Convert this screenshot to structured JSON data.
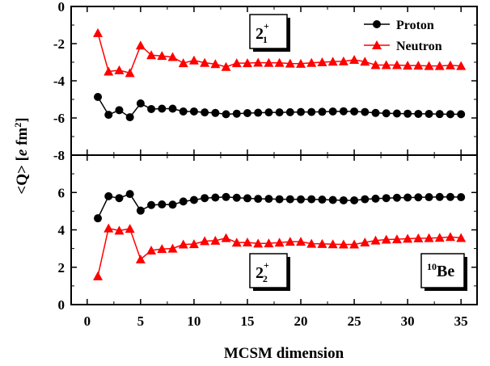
{
  "figure": {
    "xlabel": "MCSM dimension",
    "ylabel_parts": {
      "pre": "<Q> [",
      "italic": "e",
      "mid": " fm",
      "sup": "2",
      "post": "]"
    },
    "colors": {
      "proton": "#000000",
      "neutron": "#ff0000",
      "axis": "#000000"
    },
    "x_ticks": [
      "0",
      "5",
      "10",
      "15",
      "20",
      "25",
      "30",
      "35"
    ],
    "xlim": [
      -1.5,
      36.5
    ]
  },
  "chart_data": [
    {
      "type": "line",
      "panel": "top",
      "xlabel": "MCSM dimension",
      "ylabel": "<Q> [e fm2]",
      "ylim": [
        -8,
        0
      ],
      "y_ticks": [
        "0",
        "-2",
        "-4",
        "-6",
        "-8"
      ],
      "state_label": {
        "main": "2",
        "sup": "+",
        "sub": "1"
      },
      "legend_position": "top-right",
      "legend": [
        "Proton",
        "Neutron"
      ],
      "x": [
        1,
        2,
        3,
        4,
        5,
        6,
        7,
        8,
        9,
        10,
        11,
        12,
        13,
        14,
        15,
        16,
        17,
        18,
        19,
        20,
        21,
        22,
        23,
        24,
        25,
        26,
        27,
        28,
        29,
        30,
        31,
        32,
        33,
        34,
        35
      ],
      "series": [
        {
          "name": "Proton",
          "marker": "circle",
          "color": "#000000",
          "values": [
            -4.87,
            -5.83,
            -5.58,
            -5.96,
            -5.22,
            -5.52,
            -5.5,
            -5.5,
            -5.65,
            -5.65,
            -5.7,
            -5.73,
            -5.8,
            -5.77,
            -5.74,
            -5.72,
            -5.7,
            -5.7,
            -5.69,
            -5.68,
            -5.68,
            -5.67,
            -5.65,
            -5.64,
            -5.65,
            -5.68,
            -5.73,
            -5.75,
            -5.76,
            -5.77,
            -5.78,
            -5.78,
            -5.79,
            -5.8,
            -5.8
          ]
        },
        {
          "name": "Neutron",
          "marker": "triangle",
          "color": "#ff0000",
          "values": [
            -1.43,
            -3.5,
            -3.43,
            -3.58,
            -2.1,
            -2.62,
            -2.66,
            -2.72,
            -3.05,
            -2.9,
            -3.03,
            -3.1,
            -3.25,
            -3.05,
            -3.05,
            -3.02,
            -3.03,
            -3.03,
            -3.07,
            -3.08,
            -3.03,
            -3.0,
            -2.97,
            -2.95,
            -2.87,
            -2.97,
            -3.15,
            -3.15,
            -3.15,
            -3.18,
            -3.18,
            -3.2,
            -3.2,
            -3.17,
            -3.2
          ]
        }
      ]
    },
    {
      "type": "line",
      "panel": "bottom",
      "xlabel": "MCSM dimension",
      "ylabel": "<Q> [e fm2]",
      "ylim": [
        0,
        8
      ],
      "y_ticks": [
        "0",
        "2",
        "4",
        "6",
        "8"
      ],
      "state_label": {
        "main": "2",
        "sup": "+",
        "sub": "2"
      },
      "nucleus_label": {
        "sup": "10",
        "main": "Be"
      },
      "x": [
        1,
        2,
        3,
        4,
        5,
        6,
        7,
        8,
        9,
        10,
        11,
        12,
        13,
        14,
        15,
        16,
        17,
        18,
        19,
        20,
        21,
        22,
        23,
        24,
        25,
        26,
        27,
        28,
        29,
        30,
        31,
        32,
        33,
        34,
        35
      ],
      "series": [
        {
          "name": "Proton",
          "marker": "circle",
          "color": "#000000",
          "values": [
            4.62,
            5.8,
            5.7,
            5.92,
            5.03,
            5.33,
            5.36,
            5.35,
            5.52,
            5.6,
            5.7,
            5.73,
            5.76,
            5.72,
            5.69,
            5.66,
            5.66,
            5.64,
            5.64,
            5.63,
            5.64,
            5.62,
            5.6,
            5.58,
            5.58,
            5.64,
            5.67,
            5.7,
            5.72,
            5.73,
            5.74,
            5.75,
            5.76,
            5.76,
            5.75
          ]
        },
        {
          "name": "Neutron",
          "marker": "triangle",
          "color": "#ff0000",
          "values": [
            1.52,
            4.08,
            3.96,
            4.06,
            2.42,
            2.9,
            2.98,
            3.0,
            3.22,
            3.24,
            3.4,
            3.42,
            3.56,
            3.32,
            3.33,
            3.27,
            3.28,
            3.32,
            3.37,
            3.37,
            3.26,
            3.25,
            3.23,
            3.22,
            3.22,
            3.33,
            3.43,
            3.48,
            3.5,
            3.53,
            3.55,
            3.56,
            3.58,
            3.62,
            3.57
          ]
        }
      ]
    }
  ]
}
